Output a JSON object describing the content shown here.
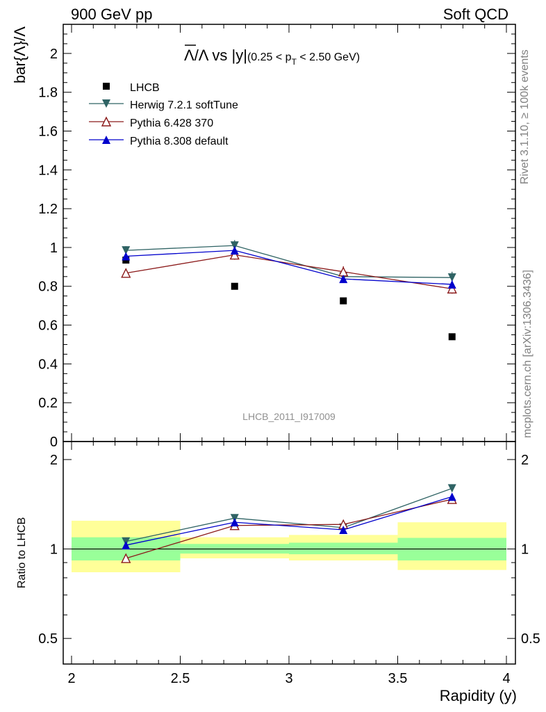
{
  "header": {
    "left": "900 GeV pp",
    "right": "Soft QCD"
  },
  "side_labels": {
    "rivet": "Rivet 3.1.10, ≥ 100k events",
    "source": "mcplots.cern.ch [arXiv:1306.3436]"
  },
  "watermark": "LHCB_2011_I917009",
  "chart_data": [
    {
      "type": "scatter",
      "title": "Λ̄/Λ vs |y|(0.25 < pT < 2.50 GeV)",
      "title_main": "Λ/Λ vs |y|",
      "title_sub_a": "(0.25 < p",
      "title_sub_t": "T",
      "title_sub_b": " < 2.50 GeV)",
      "ylabel": "bar{Λ}/Λ",
      "xlabel": "",
      "xlim": [
        2,
        4
      ],
      "ylim": [
        0,
        2.15
      ],
      "yticks": [
        "0",
        "0.2",
        "0.4",
        "0.6",
        "0.8",
        "1",
        "1.2",
        "1.4",
        "1.6",
        "1.8",
        "2"
      ],
      "xticks": [
        "2",
        "2.5",
        "3",
        "3.5",
        "4"
      ],
      "grid": false,
      "legend_position": "top-left",
      "x": [
        2.25,
        2.75,
        3.25,
        3.75
      ],
      "series": [
        {
          "name": "LHCB",
          "values": [
            0.935,
            0.8,
            0.725,
            0.54
          ],
          "errors": [
            0.01,
            0.01,
            0.01,
            0.01
          ],
          "color": "#000000",
          "marker": "square"
        },
        {
          "name": "Herwig 7.2.1 softTune",
          "values": [
            0.985,
            1.01,
            0.85,
            0.845
          ],
          "errors": [
            0.022,
            0.028,
            0.022,
            0.03
          ],
          "color": "#2f6364",
          "marker": "triangle-down"
        },
        {
          "name": "Pythia 6.428 370",
          "values": [
            0.868,
            0.962,
            0.875,
            0.787
          ],
          "errors": [
            0.022,
            0.025,
            0.028,
            0.025
          ],
          "color": "#8b1a1a",
          "marker": "triangle-up-open"
        },
        {
          "name": "Pythia 8.308 default",
          "values": [
            0.955,
            0.985,
            0.838,
            0.81
          ],
          "errors": [
            0.015,
            0.022,
            0.018,
            0.022
          ],
          "color": "#0000cc",
          "marker": "triangle-up"
        }
      ]
    },
    {
      "type": "scatter",
      "ylabel": "Ratio to LHCB",
      "xlabel": "Rapidity (y)",
      "xlim": [
        2,
        4
      ],
      "ylim": [
        0.41,
        2.3
      ],
      "yscale": "log",
      "yticks": [
        "0.5",
        "1",
        "2"
      ],
      "xticks": [
        "2",
        "2.5",
        "3",
        "3.5",
        "4"
      ],
      "reference_line": 1,
      "uncertainty_bands": [
        {
          "x": [
            2,
            2.5
          ],
          "inner": [
            0.915,
            1.095
          ],
          "outer": [
            0.835,
            1.245
          ]
        },
        {
          "x": [
            2.5,
            3
          ],
          "inner": [
            0.965,
            1.04
          ],
          "outer": [
            0.93,
            1.095
          ]
        },
        {
          "x": [
            3,
            3.5
          ],
          "inner": [
            0.96,
            1.05
          ],
          "outer": [
            0.915,
            1.115
          ]
        },
        {
          "x": [
            3.5,
            4
          ],
          "inner": [
            0.915,
            1.09
          ],
          "outer": [
            0.85,
            1.23
          ]
        }
      ],
      "band_colors": {
        "inner": "#99ff99",
        "outer": "#ffff99"
      },
      "x": [
        2.25,
        2.75,
        3.25,
        3.75
      ],
      "series": [
        {
          "name": "Herwig 7.2.1 softTune",
          "values": [
            1.06,
            1.27,
            1.18,
            1.6
          ],
          "errors": [
            0.02,
            0.025,
            0.025,
            0.04
          ],
          "color": "#2f6364",
          "marker": "triangle-down"
        },
        {
          "name": "Pythia 6.428 370",
          "values": [
            0.93,
            1.2,
            1.21,
            1.47
          ],
          "errors": [
            0.02,
            0.03,
            0.035,
            0.04
          ],
          "color": "#8b1a1a",
          "marker": "triangle-up-open"
        },
        {
          "name": "Pythia 8.308 default",
          "values": [
            1.03,
            1.23,
            1.16,
            1.5
          ],
          "errors": [
            0.015,
            0.025,
            0.02,
            0.035
          ],
          "color": "#0000cc",
          "marker": "triangle-up"
        }
      ]
    }
  ]
}
